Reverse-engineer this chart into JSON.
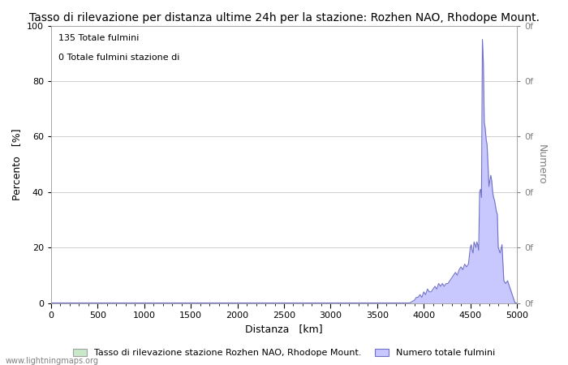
{
  "title": "Tasso di rilevazione per distanza ultime 24h per la stazione: Rozhen NAO, Rhodope Mount.",
  "xlabel": "Distanza   [km]",
  "ylabel_left": "Percento   [%]",
  "ylabel_right": "Numero",
  "annotation_line1": "135 Totale fulmini",
  "annotation_line2": "0 Totale fulmini stazione di",
  "xlim": [
    0,
    5000
  ],
  "ylim_left": [
    0,
    100
  ],
  "xticks": [
    0,
    500,
    1000,
    1500,
    2000,
    2500,
    3000,
    3500,
    4000,
    4500,
    5000
  ],
  "yticks_left": [
    0,
    20,
    40,
    60,
    80,
    100
  ],
  "right_ytick_labels": [
    "0f",
    "0f",
    "0f",
    "0f",
    "0f",
    "0f"
  ],
  "legend_label_green": "Tasso di rilevazione stazione Rozhen NAO, Rhodope Mount.",
  "legend_label_blue": "Numero totale fulmini",
  "watermark": "www.lightningmaps.org",
  "fill_color": "#c8c8ff",
  "line_color": "#7070c8",
  "green_fill_color": "#c8e8c8",
  "background_color": "#ffffff",
  "grid_color": "#c8c8c8",
  "title_fontsize": 10,
  "axis_fontsize": 9,
  "tick_fontsize": 8,
  "data_distances": [
    0,
    100,
    200,
    300,
    400,
    500,
    600,
    700,
    800,
    900,
    1000,
    1100,
    1200,
    1300,
    1400,
    1500,
    1600,
    1700,
    1800,
    1900,
    2000,
    2100,
    2200,
    2300,
    2400,
    2500,
    2600,
    2700,
    2800,
    2900,
    3000,
    3100,
    3200,
    3300,
    3400,
    3500,
    3600,
    3700,
    3800,
    3850,
    3900,
    3920,
    3940,
    3960,
    3980,
    4000,
    4020,
    4040,
    4060,
    4080,
    4100,
    4120,
    4140,
    4160,
    4180,
    4200,
    4220,
    4240,
    4260,
    4280,
    4300,
    4320,
    4340,
    4360,
    4380,
    4400,
    4420,
    4440,
    4460,
    4480,
    4500,
    4510,
    4520,
    4530,
    4540,
    4550,
    4560,
    4570,
    4580,
    4590,
    4600,
    4610,
    4620,
    4630,
    4640,
    4650,
    4660,
    4670,
    4680,
    4690,
    4700,
    4710,
    4720,
    4730,
    4740,
    4750,
    4760,
    4770,
    4780,
    4790,
    4800,
    4820,
    4840,
    4860,
    4880,
    4900,
    4920,
    4940,
    4960,
    4980,
    5000
  ],
  "data_values": [
    0,
    0,
    0,
    0,
    0,
    0,
    0,
    0,
    0,
    0,
    0,
    0,
    0,
    0,
    0,
    0,
    0,
    0,
    0,
    0,
    0,
    0,
    0,
    0,
    0,
    0,
    0,
    0,
    0,
    0,
    0,
    0,
    0,
    0,
    0,
    0,
    0,
    0,
    0,
    0,
    1,
    2,
    2,
    3,
    2,
    4,
    3,
    5,
    4,
    4,
    5,
    6,
    5,
    7,
    6,
    7,
    6,
    7,
    7,
    8,
    9,
    10,
    11,
    10,
    12,
    13,
    12,
    14,
    13,
    14,
    20,
    21,
    19,
    18,
    22,
    21,
    20,
    22,
    21,
    19,
    40,
    41,
    38,
    95,
    87,
    65,
    63,
    59,
    57,
    50,
    42,
    44,
    46,
    44,
    40,
    38,
    37,
    35,
    33,
    32,
    20,
    18,
    21,
    8,
    7,
    8,
    6,
    4,
    2,
    0,
    0
  ]
}
